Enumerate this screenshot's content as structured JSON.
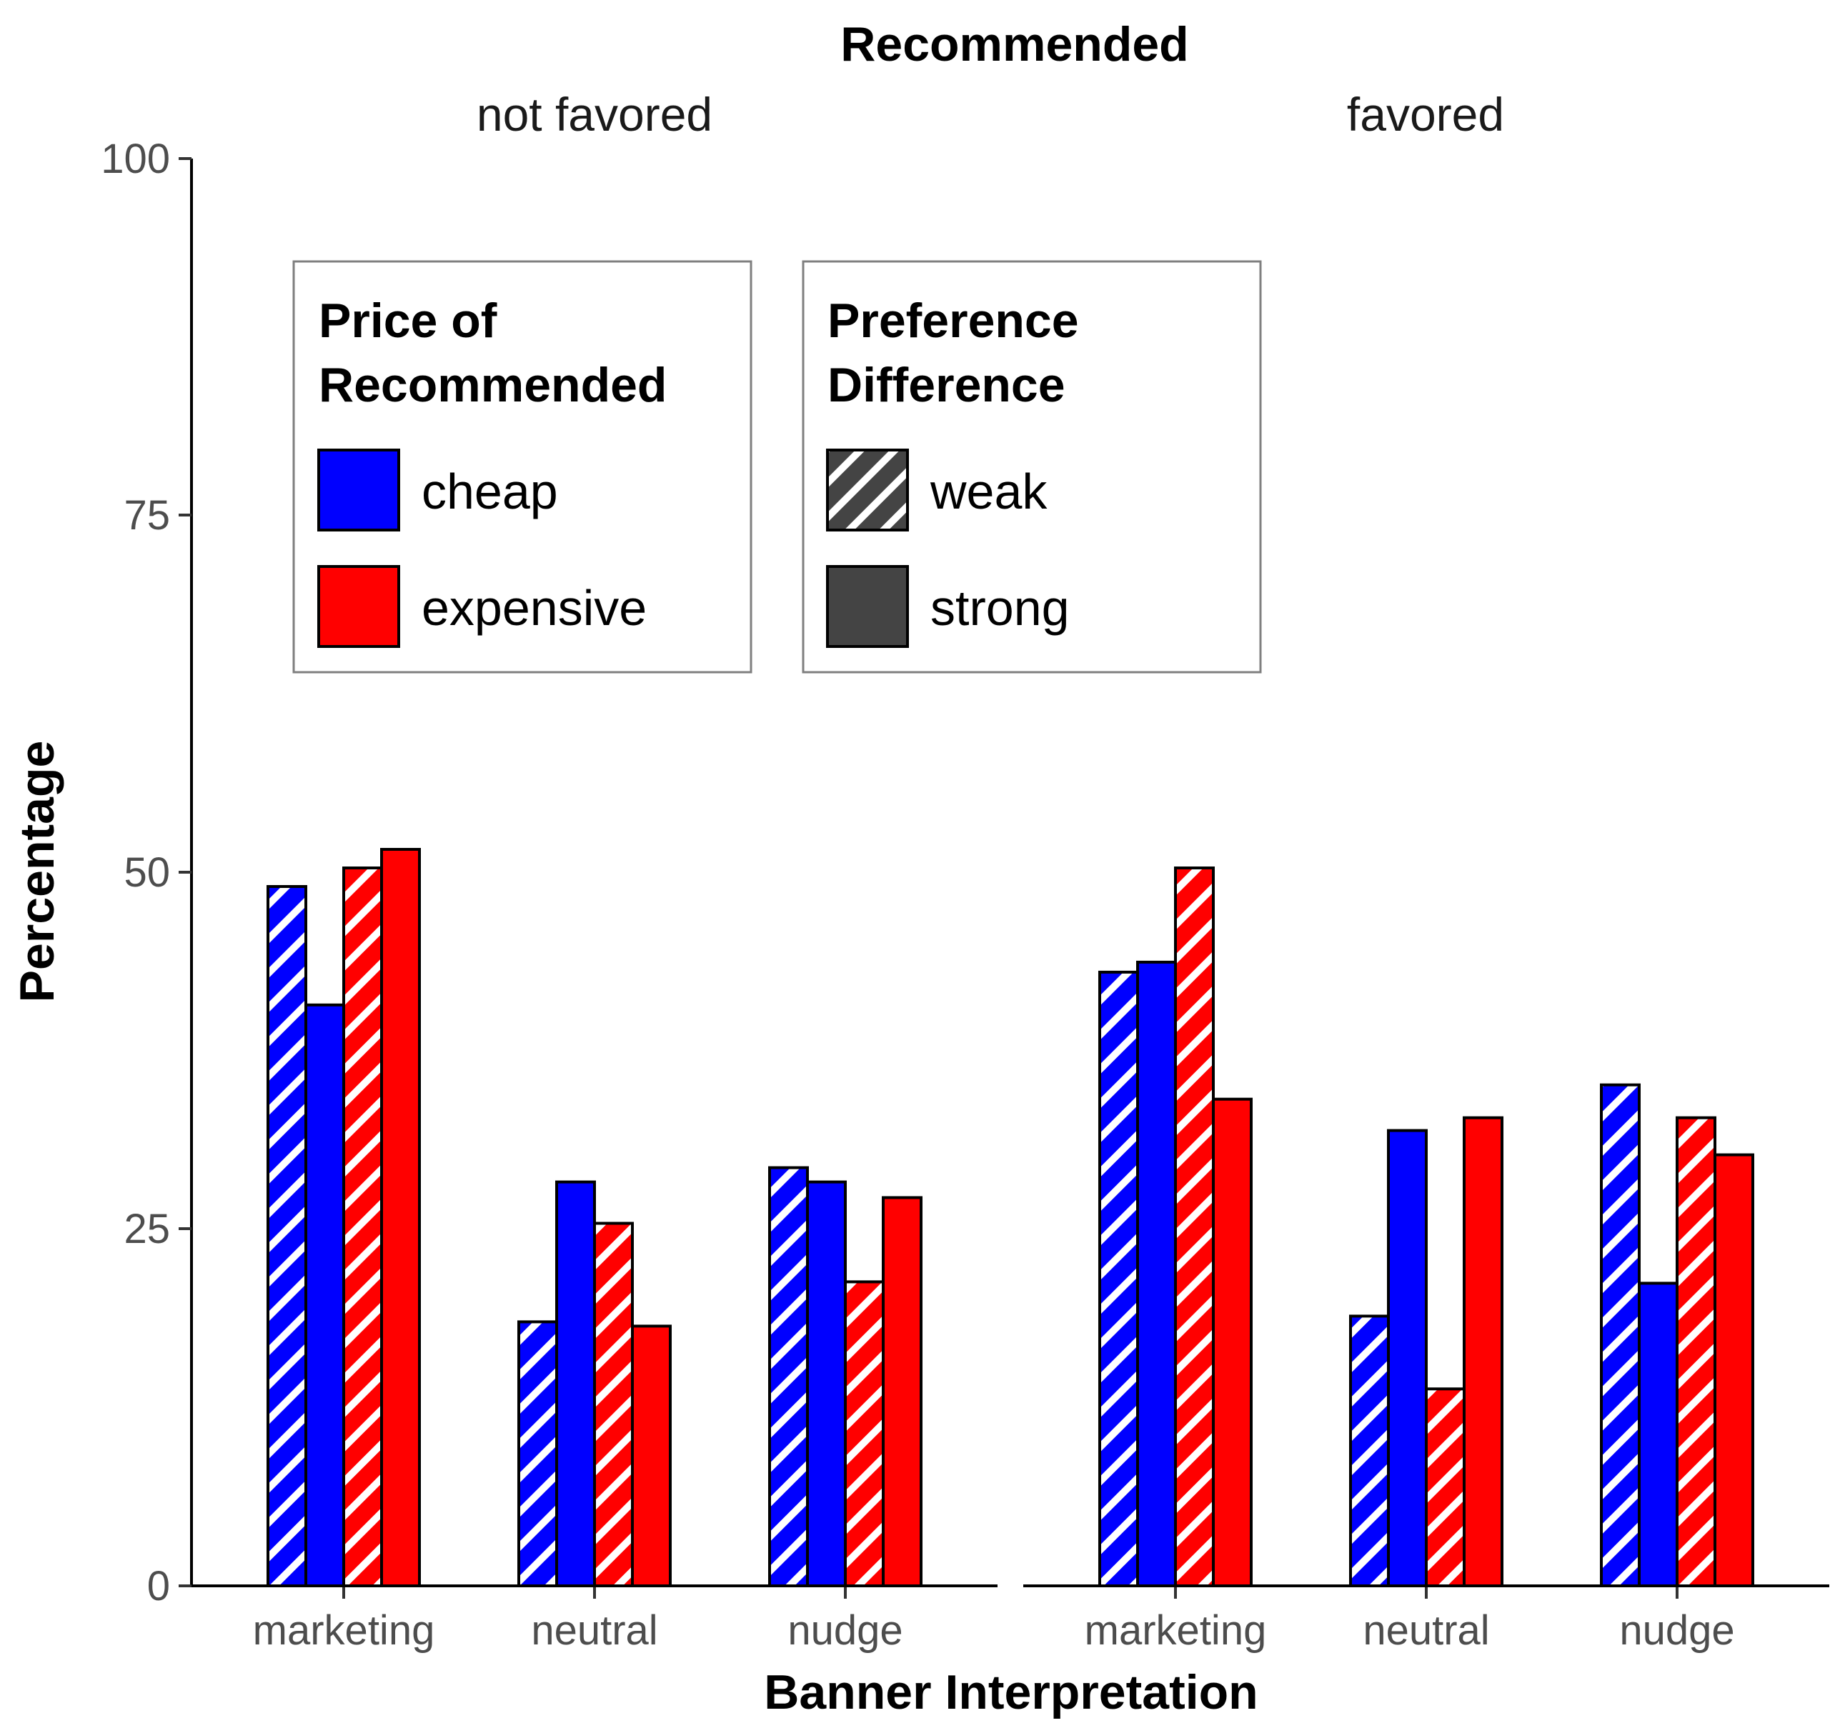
{
  "chart_data": {
    "type": "bar",
    "top_title": "Recommended",
    "xlabel": "Banner Interpretation",
    "ylabel": "Percentage",
    "ylim": [
      0,
      100
    ],
    "yticks": [
      "0",
      "25",
      "50",
      "75",
      "100"
    ],
    "categories": [
      "marketing",
      "neutral",
      "nudge"
    ],
    "legends": {
      "price": {
        "title": [
          "Price of",
          "Recommended"
        ],
        "entries": [
          {
            "label": "cheap",
            "color": "#0000ff"
          },
          {
            "label": "expensive",
            "color": "#ff0000"
          }
        ]
      },
      "preference": {
        "title": [
          "Preference",
          "Difference"
        ],
        "entries": [
          {
            "label": "weak",
            "pattern": "striped",
            "color": "#444444"
          },
          {
            "label": "strong",
            "pattern": "solid",
            "color": "#444444"
          }
        ]
      }
    },
    "panels": [
      {
        "label": "not favored",
        "series": [
          {
            "name": "cheap weak",
            "values": [
              49.0,
              18.5,
              29.3
            ]
          },
          {
            "name": "cheap strong",
            "values": [
              40.7,
              28.3,
              28.3
            ]
          },
          {
            "name": "expensive weak",
            "values": [
              50.3,
              25.4,
              21.3
            ]
          },
          {
            "name": "expensive strong",
            "values": [
              51.6,
              18.2,
              27.2
            ]
          }
        ]
      },
      {
        "label": "favored",
        "series": [
          {
            "name": "cheap weak",
            "values": [
              43.0,
              18.9,
              35.1
            ]
          },
          {
            "name": "cheap strong",
            "values": [
              43.7,
              31.9,
              21.2
            ]
          },
          {
            "name": "expensive weak",
            "values": [
              50.3,
              13.8,
              32.8
            ]
          },
          {
            "name": "expensive strong",
            "values": [
              34.1,
              32.8,
              30.2
            ]
          }
        ]
      }
    ]
  }
}
